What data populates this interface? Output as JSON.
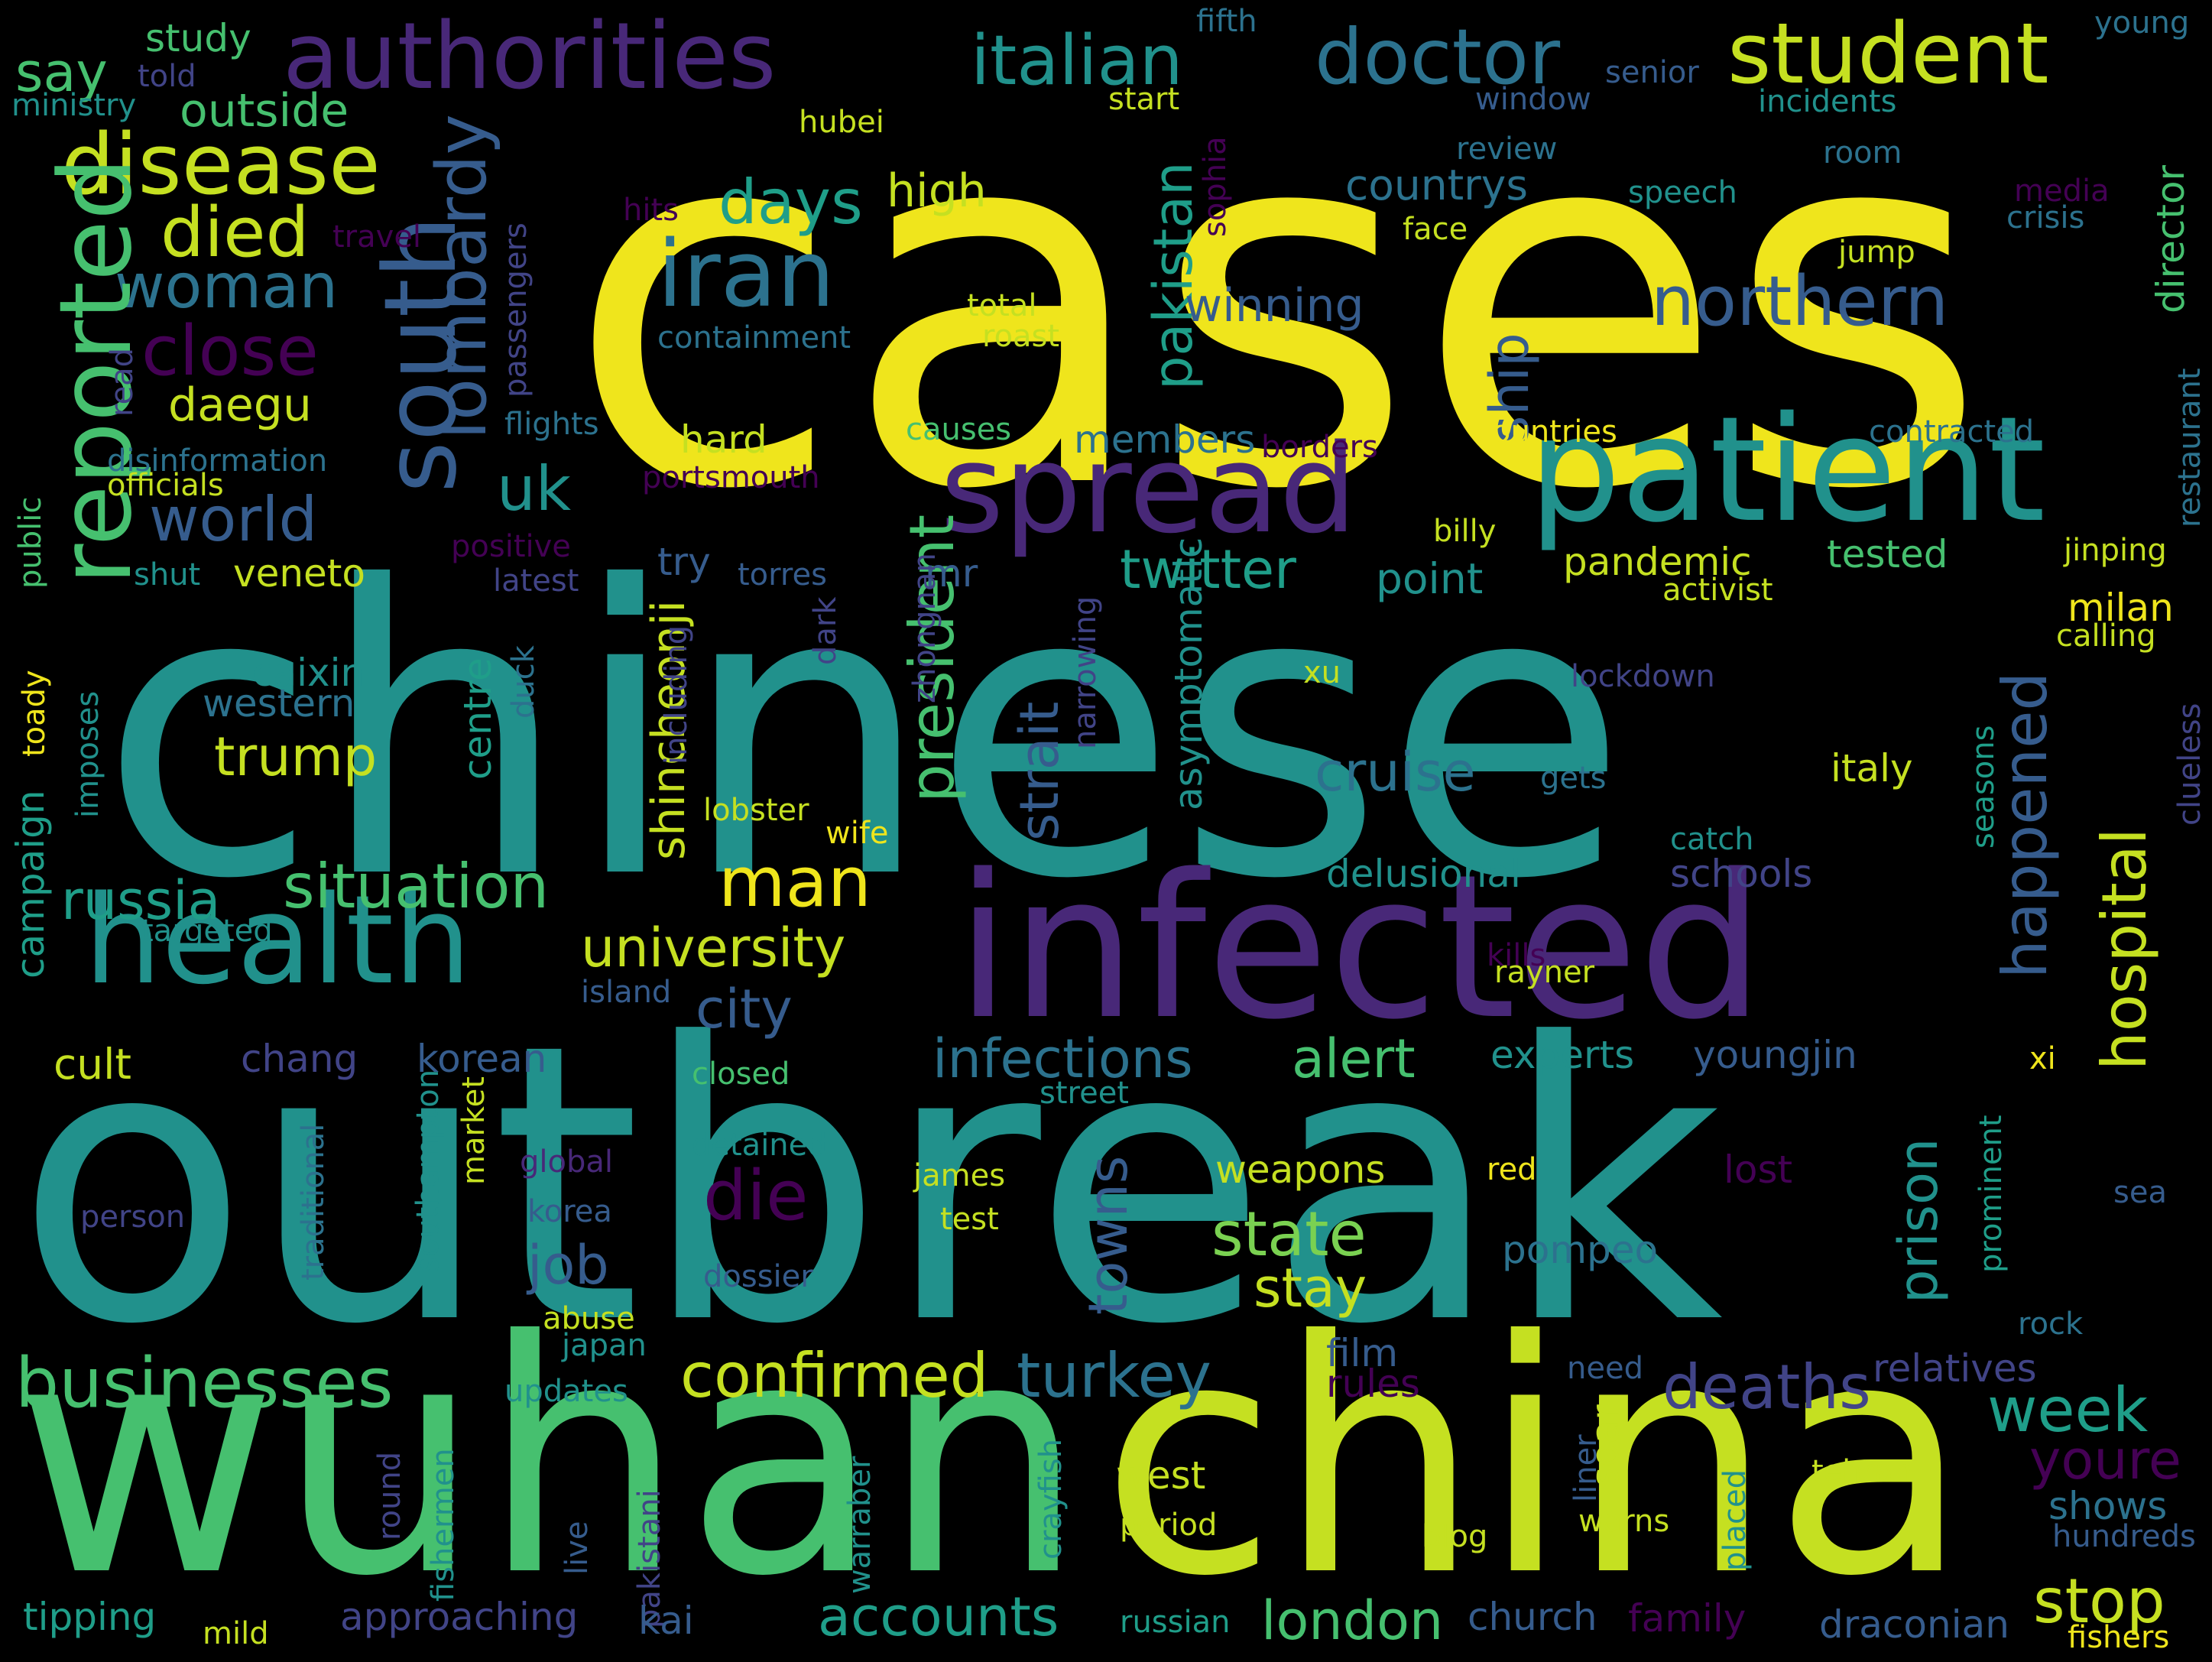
{
  "palette": {
    "background": "#000000",
    "yellow": "#efe51c",
    "lime": "#c5e021",
    "lightgreen": "#7ad151",
    "green": "#46c06f",
    "teal": "#21918c",
    "cyan": "#1f9e89",
    "steelblue": "#2c728e",
    "slate": "#365c8d",
    "indigo": "#414487",
    "purple": "#482878",
    "darkpurple": "#440154"
  },
  "words": [
    {
      "text": "cases",
      "color": "yellow"
    },
    {
      "text": "chinese",
      "color": "teal"
    },
    {
      "text": "outbreak",
      "color": "teal"
    },
    {
      "text": "wuhan",
      "color": "green"
    },
    {
      "text": "china",
      "color": "lime"
    },
    {
      "text": "infected",
      "color": "purple"
    },
    {
      "text": "patient",
      "color": "teal"
    },
    {
      "text": "spread",
      "color": "purple"
    },
    {
      "text": "health",
      "color": "teal"
    },
    {
      "text": "authorities",
      "color": "purple"
    },
    {
      "text": "italian",
      "color": "teal"
    },
    {
      "text": "doctor",
      "color": "steelblue"
    },
    {
      "text": "student",
      "color": "lime"
    },
    {
      "text": "disease",
      "color": "lime"
    },
    {
      "text": "say",
      "color": "green"
    },
    {
      "text": "study",
      "color": "green"
    },
    {
      "text": "outside",
      "color": "green"
    },
    {
      "text": "died",
      "color": "lime"
    },
    {
      "text": "woman",
      "color": "steelblue"
    },
    {
      "text": "close",
      "color": "darkpurple"
    },
    {
      "text": "daegu",
      "color": "lime"
    },
    {
      "text": "reported",
      "color": "green"
    },
    {
      "text": "iran",
      "color": "steelblue"
    },
    {
      "text": "days",
      "color": "cyan"
    },
    {
      "text": "high",
      "color": "lime"
    },
    {
      "text": "south",
      "color": "slate"
    },
    {
      "text": "lombardy",
      "color": "slate"
    },
    {
      "text": "northern",
      "color": "slate"
    },
    {
      "text": "uk",
      "color": "teal"
    },
    {
      "text": "world",
      "color": "slate"
    },
    {
      "text": "pakistan",
      "color": "cyan"
    },
    {
      "text": "ship",
      "color": "slate"
    },
    {
      "text": "winning",
      "color": "slate"
    },
    {
      "text": "countrys",
      "color": "steelblue"
    },
    {
      "text": "review",
      "color": "steelblue"
    },
    {
      "text": "speech",
      "color": "teal"
    },
    {
      "text": "face",
      "color": "lime"
    },
    {
      "text": "jump",
      "color": "lime"
    },
    {
      "text": "total",
      "color": "lime"
    },
    {
      "text": "roast",
      "color": "lime"
    },
    {
      "text": "containment",
      "color": "steelblue"
    },
    {
      "text": "fifth",
      "color": "steelblue"
    },
    {
      "text": "young",
      "color": "steelblue"
    },
    {
      "text": "senior",
      "color": "slate"
    },
    {
      "text": "told",
      "color": "indigo"
    },
    {
      "text": "ministry",
      "color": "teal"
    },
    {
      "text": "hubei",
      "color": "lime"
    },
    {
      "text": "start",
      "color": "lime"
    },
    {
      "text": "window",
      "color": "slate"
    },
    {
      "text": "incidents",
      "color": "teal"
    },
    {
      "text": "room",
      "color": "steelblue"
    },
    {
      "text": "media",
      "color": "darkpurple"
    },
    {
      "text": "crisis",
      "color": "steelblue"
    },
    {
      "text": "director",
      "color": "green"
    },
    {
      "text": "hits",
      "color": "darkpurple"
    },
    {
      "text": "travel",
      "color": "darkpurple"
    },
    {
      "text": "sophia",
      "color": "darkpurple"
    },
    {
      "text": "passengers",
      "color": "indigo"
    },
    {
      "text": "read",
      "color": "indigo"
    },
    {
      "text": "flights",
      "color": "steelblue"
    },
    {
      "text": "disinformation",
      "color": "steelblue"
    },
    {
      "text": "officials",
      "color": "lime"
    },
    {
      "text": "public",
      "color": "green"
    },
    {
      "text": "causes",
      "color": "green"
    },
    {
      "text": "countries",
      "color": "yellow"
    },
    {
      "text": "contracted",
      "color": "steelblue"
    },
    {
      "text": "members",
      "color": "steelblue"
    },
    {
      "text": "borders",
      "color": "darkpurple"
    },
    {
      "text": "portsmouth",
      "color": "darkpurple"
    },
    {
      "text": "hard",
      "color": "lime"
    },
    {
      "text": "shincheonji",
      "color": "lime"
    },
    {
      "text": "president",
      "color": "green"
    },
    {
      "text": "restaurant",
      "color": "steelblue"
    },
    {
      "text": "positive",
      "color": "darkpurple"
    },
    {
      "text": "latest",
      "color": "indigo"
    },
    {
      "text": "shut",
      "color": "teal"
    },
    {
      "text": "veneto",
      "color": "lime"
    },
    {
      "text": "try",
      "color": "slate"
    },
    {
      "text": "torres",
      "color": "slate"
    },
    {
      "text": "mr",
      "color": "slate"
    },
    {
      "text": "twitter",
      "color": "cyan"
    },
    {
      "text": "point",
      "color": "teal"
    },
    {
      "text": "billy",
      "color": "lime"
    },
    {
      "text": "pandemic",
      "color": "lime"
    },
    {
      "text": "tested",
      "color": "green"
    },
    {
      "text": "jinping",
      "color": "lime"
    },
    {
      "text": "activist",
      "color": "lime"
    },
    {
      "text": "happened",
      "color": "slate"
    },
    {
      "text": "hospital",
      "color": "lime"
    },
    {
      "text": "milan",
      "color": "yellow"
    },
    {
      "text": "calling",
      "color": "lime"
    },
    {
      "text": "caixin",
      "color": "teal"
    },
    {
      "text": "western",
      "color": "steelblue"
    },
    {
      "text": "toady",
      "color": "yellow"
    },
    {
      "text": "imposes",
      "color": "teal"
    },
    {
      "text": "trump",
      "color": "lime"
    },
    {
      "text": "centre",
      "color": "cyan"
    },
    {
      "text": "duck",
      "color": "steelblue"
    },
    {
      "text": "including",
      "color": "indigo"
    },
    {
      "text": "lobster",
      "color": "lime"
    },
    {
      "text": "dark",
      "color": "indigo"
    },
    {
      "text": "zhongnan",
      "color": "indigo"
    },
    {
      "text": "wife",
      "color": "yellow"
    },
    {
      "text": "narrowing",
      "color": "indigo"
    },
    {
      "text": "strait",
      "color": "slate"
    },
    {
      "text": "asymptomatic",
      "color": "teal"
    },
    {
      "text": "cruise",
      "color": "steelblue"
    },
    {
      "text": "xu",
      "color": "lime"
    },
    {
      "text": "lockdown",
      "color": "indigo"
    },
    {
      "text": "gets",
      "color": "steelblue"
    },
    {
      "text": "italy",
      "color": "lime"
    },
    {
      "text": "seasons",
      "color": "cyan"
    },
    {
      "text": "clueless",
      "color": "indigo"
    },
    {
      "text": "campaign",
      "color": "cyan"
    },
    {
      "text": "russia",
      "color": "cyan"
    },
    {
      "text": "situation",
      "color": "green"
    },
    {
      "text": "man",
      "color": "yellow"
    },
    {
      "text": "delusional",
      "color": "teal"
    },
    {
      "text": "schools",
      "color": "indigo"
    },
    {
      "text": "catch",
      "color": "teal"
    },
    {
      "text": "targeted",
      "color": "teal"
    },
    {
      "text": "university",
      "color": "lime"
    },
    {
      "text": "kills",
      "color": "darkpurple"
    },
    {
      "text": "rayner",
      "color": "lime"
    },
    {
      "text": "island",
      "color": "slate"
    },
    {
      "text": "city",
      "color": "slate"
    },
    {
      "text": "cult",
      "color": "lime"
    },
    {
      "text": "chang",
      "color": "indigo"
    },
    {
      "text": "korean",
      "color": "slate"
    },
    {
      "text": "infections",
      "color": "steelblue"
    },
    {
      "text": "alert",
      "color": "green"
    },
    {
      "text": "experts",
      "color": "teal"
    },
    {
      "text": "youngjin",
      "color": "slate"
    },
    {
      "text": "xi",
      "color": "yellow"
    },
    {
      "text": "closed",
      "color": "green"
    },
    {
      "text": "street",
      "color": "teal"
    },
    {
      "text": "traditional",
      "color": "steelblue"
    },
    {
      "text": "southampton",
      "color": "teal"
    },
    {
      "text": "market",
      "color": "lime"
    },
    {
      "text": "global",
      "color": "purple"
    },
    {
      "text": "detained",
      "color": "teal"
    },
    {
      "text": "towns",
      "color": "slate"
    },
    {
      "text": "die",
      "color": "darkpurple"
    },
    {
      "text": "james",
      "color": "lime"
    },
    {
      "text": "test",
      "color": "lime"
    },
    {
      "text": "weapons",
      "color": "lime"
    },
    {
      "text": "red",
      "color": "yellow"
    },
    {
      "text": "lost",
      "color": "darkpurple"
    },
    {
      "text": "prison",
      "color": "teal"
    },
    {
      "text": "prominent",
      "color": "cyan"
    },
    {
      "text": "sea",
      "color": "slate"
    },
    {
      "text": "person",
      "color": "indigo"
    },
    {
      "text": "korea",
      "color": "slate"
    },
    {
      "text": "job",
      "color": "slate"
    },
    {
      "text": "state",
      "color": "lightgreen"
    },
    {
      "text": "stay",
      "color": "lime"
    },
    {
      "text": "pompeo",
      "color": "steelblue"
    },
    {
      "text": "dossier",
      "color": "slate"
    },
    {
      "text": "abuse",
      "color": "lime"
    },
    {
      "text": "japan",
      "color": "teal"
    },
    {
      "text": "rock",
      "color": "steelblue"
    },
    {
      "text": "film",
      "color": "slate"
    },
    {
      "text": "rules",
      "color": "darkpurple"
    },
    {
      "text": "need",
      "color": "slate"
    },
    {
      "text": "relatives",
      "color": "indigo"
    },
    {
      "text": "businesses",
      "color": "green"
    },
    {
      "text": "confirmed",
      "color": "lime"
    },
    {
      "text": "turkey",
      "color": "steelblue"
    },
    {
      "text": "deaths",
      "color": "indigo"
    },
    {
      "text": "updates",
      "color": "teal"
    },
    {
      "text": "week",
      "color": "cyan"
    },
    {
      "text": "youre",
      "color": "darkpurple"
    },
    {
      "text": "west",
      "color": "lime"
    },
    {
      "text": "soar",
      "color": "lime"
    },
    {
      "text": "liner",
      "color": "slate"
    },
    {
      "text": "tehran",
      "color": "lime"
    },
    {
      "text": "shows",
      "color": "steelblue"
    },
    {
      "text": "hundreds",
      "color": "slate"
    },
    {
      "text": "period",
      "color": "lime"
    },
    {
      "text": "blog",
      "color": "lime"
    },
    {
      "text": "warns",
      "color": "lime"
    },
    {
      "text": "round",
      "color": "indigo"
    },
    {
      "text": "fishermen",
      "color": "teal"
    },
    {
      "text": "live",
      "color": "slate"
    },
    {
      "text": "pakistani",
      "color": "indigo"
    },
    {
      "text": "warraber",
      "color": "teal"
    },
    {
      "text": "crayfish",
      "color": "teal"
    },
    {
      "text": "placed",
      "color": "teal"
    },
    {
      "text": "stop",
      "color": "lime"
    },
    {
      "text": "tipping",
      "color": "cyan"
    },
    {
      "text": "mild",
      "color": "lime"
    },
    {
      "text": "approaching",
      "color": "indigo"
    },
    {
      "text": "kai",
      "color": "slate"
    },
    {
      "text": "accounts",
      "color": "cyan"
    },
    {
      "text": "russian",
      "color": "cyan"
    },
    {
      "text": "london",
      "color": "green"
    },
    {
      "text": "church",
      "color": "slate"
    },
    {
      "text": "family",
      "color": "darkpurple"
    },
    {
      "text": "draconian",
      "color": "slate"
    },
    {
      "text": "fishers",
      "color": "yellow"
    }
  ]
}
